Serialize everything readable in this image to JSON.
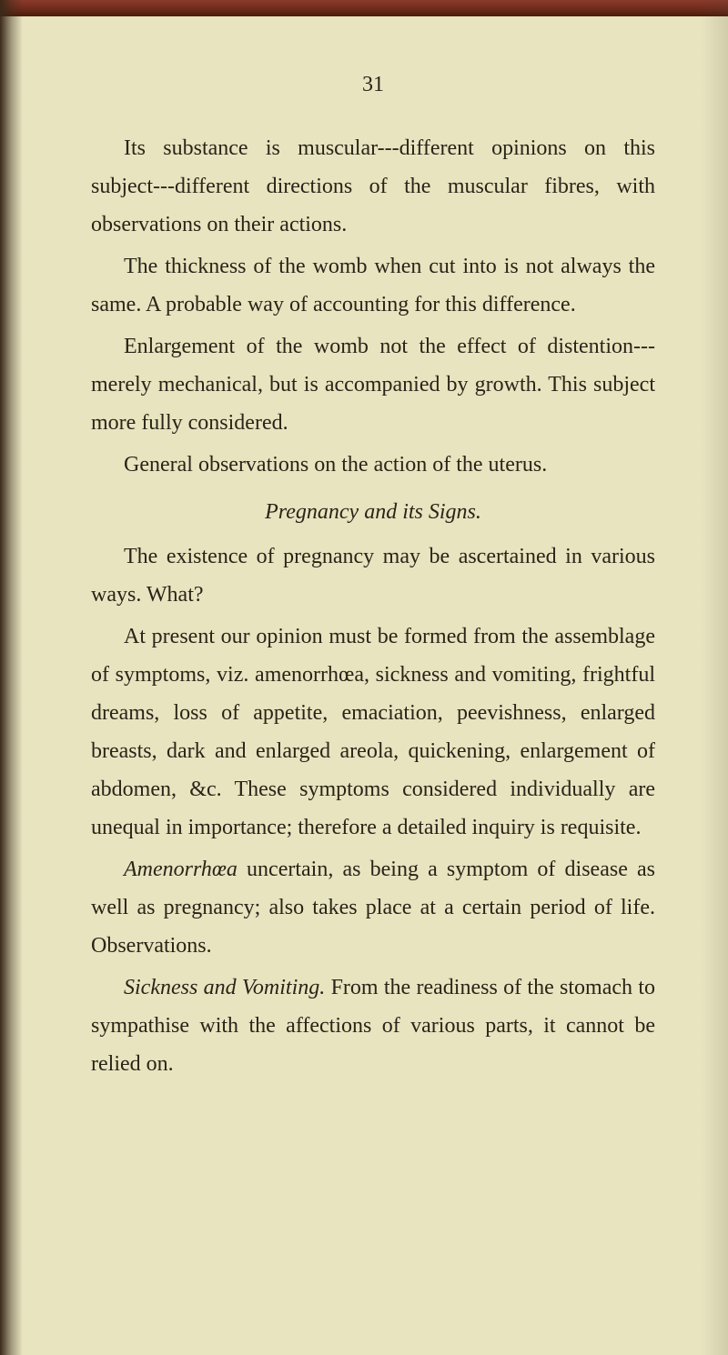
{
  "page": {
    "number": "31",
    "background_color": "#e8e4c0",
    "text_color": "#2a2418",
    "font_size": 24,
    "line_height": 1.75,
    "top_edge_color_start": "#8b3a2a",
    "top_edge_color_end": "#4a1a0a"
  },
  "paragraphs": {
    "p1": "Its substance is muscular---different opinions on this subject---different directions of the muscular fibres, with observations on their actions.",
    "p2": "The thickness of the womb when cut into is not always the same. A probable way of accounting for this difference.",
    "p3": "Enlargement of the womb not the effect of distention---merely mechanical, but is accompanied by growth. This subject more fully considered.",
    "p4": "General observations on the action of the uterus.",
    "section_title": "Pregnancy and its Signs.",
    "p5": "The existence of pregnancy may be ascertained in various ways. What?",
    "p6": "At present our opinion must be formed from the assemblage of symptoms, viz. amenorrhœa, sickness and vomiting, frightful dreams, loss of appetite, emaciation, peevishness, enlarged breasts, dark and enlarged areola, quickening, enlargement of abdomen, &c. These symptoms considered individually are unequal in importance; therefore a detailed inquiry is requisite.",
    "p7_italic": "Amenorrhœa",
    "p7_rest": " uncertain, as being a symptom of disease as well as pregnancy; also takes place at a certain period of life. Observations.",
    "p8_italic": "Sickness and Vomiting.",
    "p8_rest": " From the readiness of the stomach to sympathise with the affections of various parts, it cannot be relied on."
  }
}
